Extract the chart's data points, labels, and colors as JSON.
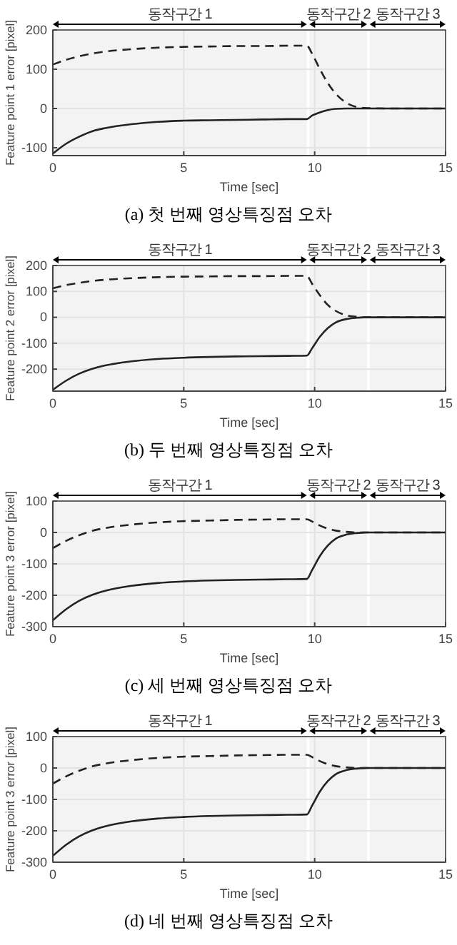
{
  "chart_data": [
    {
      "type": "line",
      "xlabel": "Time [sec]",
      "ylabel": "Feature point 1 error [pixel]",
      "annotations": [
        "(a) 첫 번째 영상특징점 오차"
      ],
      "x": [
        0,
        0.5,
        1,
        1.5,
        2,
        3,
        4,
        5,
        6,
        7,
        8,
        9,
        9.7,
        9.9,
        10.2,
        10.5,
        10.8,
        11.2,
        11.6,
        12,
        13,
        15
      ],
      "series": [
        {
          "color": "#222222",
          "line_style": "solid",
          "values": [
            -115,
            -90,
            -72,
            -58,
            -50,
            -40,
            -34,
            -31,
            -30,
            -29,
            -28,
            -27,
            -27,
            -18,
            -10,
            -4,
            -1,
            0,
            0,
            0,
            0,
            0
          ]
        },
        {
          "color": "#222222",
          "line_style": "dashed",
          "values": [
            112,
            124,
            133,
            140,
            145,
            151,
            155,
            157,
            158,
            159,
            159,
            160,
            160,
            140,
            100,
            65,
            38,
            15,
            4,
            1,
            0,
            0
          ]
        }
      ],
      "xlim": [
        0,
        15
      ],
      "xticks": [
        0,
        5,
        10,
        15
      ],
      "ylim": [
        -120,
        200
      ],
      "yticks": [
        -100,
        0,
        100,
        200
      ],
      "grid": true,
      "bands": [
        {
          "axis": "x",
          "from": 0,
          "to": 9.7,
          "label": "동작구간 1"
        },
        {
          "axis": "x",
          "from": 9.8,
          "to": 12,
          "label": "동작구간 2"
        },
        {
          "axis": "x",
          "from": 12.1,
          "to": 15,
          "label": "동작구간 3"
        }
      ]
    },
    {
      "type": "line",
      "xlabel": "Time [sec]",
      "ylabel": "Feature point 2 error [pixel]",
      "annotations": [
        "(b) 두 번째 영상특징점 오차"
      ],
      "x": [
        0,
        0.5,
        1,
        1.5,
        2,
        3,
        4,
        5,
        6,
        7,
        8,
        9,
        9.7,
        9.9,
        10.2,
        10.5,
        10.8,
        11.2,
        11.6,
        12,
        13,
        15
      ],
      "series": [
        {
          "color": "#222222",
          "line_style": "solid",
          "values": [
            -280,
            -245,
            -218,
            -199,
            -186,
            -170,
            -161,
            -156,
            -153,
            -151,
            -150,
            -149,
            -148,
            -120,
            -75,
            -42,
            -20,
            -7,
            -2,
            0,
            0,
            0
          ]
        },
        {
          "color": "#222222",
          "line_style": "dashed",
          "values": [
            112,
            124,
            133,
            140,
            145,
            151,
            155,
            157,
            158,
            159,
            159,
            160,
            160,
            130,
            85,
            48,
            25,
            8,
            2,
            0,
            0,
            0
          ]
        }
      ],
      "xlim": [
        0,
        15
      ],
      "xticks": [
        0,
        5,
        10,
        15
      ],
      "ylim": [
        -285,
        200
      ],
      "yticks": [
        -200,
        -100,
        0,
        100,
        200
      ],
      "grid": true,
      "bands": [
        {
          "axis": "x",
          "from": 0,
          "to": 9.7,
          "label": "동작구간 1"
        },
        {
          "axis": "x",
          "from": 9.8,
          "to": 12,
          "label": "동작구간 2"
        },
        {
          "axis": "x",
          "from": 12.1,
          "to": 15,
          "label": "동작구간 3"
        }
      ]
    },
    {
      "type": "line",
      "xlabel": "Time [sec]",
      "ylabel": "Feature point 3 error [pixel]",
      "annotations": [
        "(c) 세 번째 영상특징점 오차"
      ],
      "x": [
        0,
        0.5,
        1,
        1.5,
        2,
        3,
        4,
        5,
        6,
        7,
        8,
        9,
        9.7,
        9.9,
        10.2,
        10.5,
        10.8,
        11.2,
        11.6,
        12,
        13,
        15
      ],
      "series": [
        {
          "color": "#222222",
          "line_style": "solid",
          "values": [
            -280,
            -245,
            -218,
            -199,
            -186,
            -170,
            -161,
            -156,
            -153,
            -151,
            -150,
            -149,
            -148,
            -120,
            -75,
            -42,
            -20,
            -7,
            -2,
            0,
            0,
            0
          ]
        },
        {
          "color": "#222222",
          "line_style": "dashed",
          "values": [
            -50,
            -27,
            -9,
            5,
            14,
            25,
            32,
            36,
            38,
            40,
            41,
            42,
            42,
            35,
            22,
            12,
            6,
            2,
            0,
            0,
            0,
            0
          ]
        }
      ],
      "xlim": [
        0,
        15
      ],
      "xticks": [
        0,
        5,
        10,
        15
      ],
      "ylim": [
        -300,
        100
      ],
      "yticks": [
        -300,
        -200,
        -100,
        0,
        100
      ],
      "grid": true,
      "bands": [
        {
          "axis": "x",
          "from": 0,
          "to": 9.7,
          "label": "동작구간 1"
        },
        {
          "axis": "x",
          "from": 9.8,
          "to": 12,
          "label": "동작구간 2"
        },
        {
          "axis": "x",
          "from": 12.1,
          "to": 15,
          "label": "동작구간 3"
        }
      ]
    },
    {
      "type": "line",
      "xlabel": "Time [sec]",
      "ylabel": "Feature point 3 error [pixel]",
      "annotations": [
        "(d) 네 번째 영상특징점 오차"
      ],
      "x": [
        0,
        0.5,
        1,
        1.5,
        2,
        3,
        4,
        5,
        6,
        7,
        8,
        9,
        9.7,
        9.9,
        10.2,
        10.5,
        10.8,
        11.2,
        11.6,
        12,
        13,
        15
      ],
      "series": [
        {
          "color": "#222222",
          "line_style": "solid",
          "values": [
            -280,
            -245,
            -218,
            -199,
            -186,
            -170,
            -161,
            -156,
            -153,
            -151,
            -150,
            -149,
            -148,
            -120,
            -75,
            -42,
            -20,
            -7,
            -2,
            0,
            0,
            0
          ]
        },
        {
          "color": "#222222",
          "line_style": "dashed",
          "values": [
            -50,
            -27,
            -9,
            5,
            14,
            25,
            32,
            36,
            38,
            40,
            41,
            42,
            42,
            35,
            22,
            12,
            6,
            2,
            0,
            0,
            0,
            0
          ]
        }
      ],
      "xlim": [
        0,
        15
      ],
      "xticks": [
        0,
        5,
        10,
        15
      ],
      "ylim": [
        -300,
        100
      ],
      "yticks": [
        -300,
        -200,
        -100,
        0,
        100
      ],
      "grid": true,
      "bands": [
        {
          "axis": "x",
          "from": 0,
          "to": 9.7,
          "label": "동작구간 1"
        },
        {
          "axis": "x",
          "from": 9.8,
          "to": 12,
          "label": "동작구간 2"
        },
        {
          "axis": "x",
          "from": 12.1,
          "to": 15,
          "label": "동작구간 3"
        }
      ]
    }
  ]
}
